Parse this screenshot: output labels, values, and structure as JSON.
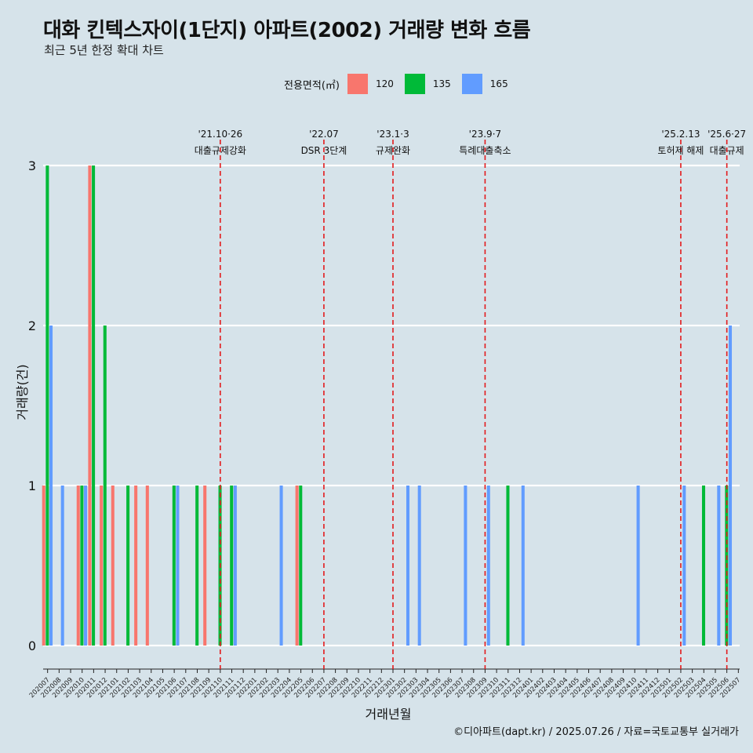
{
  "title": "대화 킨텍스자이(1단지) 아파트(2002) 거래량 변화 흐름",
  "subtitle": "최근 5년 한정 확대 차트",
  "legend": {
    "title": "전용면적(㎡)",
    "items": [
      {
        "label": "120",
        "color": "#f8766d"
      },
      {
        "label": "135",
        "color": "#00ba38"
      },
      {
        "label": "165",
        "color": "#619cff"
      }
    ]
  },
  "caption": "©디아파트(dapt.kr) / 2025.07.26 / 자료=국토교통부 실거래가",
  "chart_data": {
    "type": "bar",
    "xlabel": "거래년월",
    "ylabel": "거래량(건)",
    "ylim": [
      0,
      3
    ],
    "yticks": [
      0,
      1,
      2,
      3
    ],
    "grid": true,
    "legend_position": "top",
    "categories": [
      "202007",
      "202008",
      "202009",
      "202010",
      "202011",
      "202012",
      "202101",
      "202102",
      "202103",
      "202104",
      "202105",
      "202106",
      "202107",
      "202108",
      "202109",
      "202110",
      "202111",
      "202112",
      "202201",
      "202202",
      "202203",
      "202204",
      "202205",
      "202206",
      "202207",
      "202208",
      "202209",
      "202210",
      "202211",
      "202212",
      "202301",
      "202302",
      "202303",
      "202304",
      "202305",
      "202306",
      "202307",
      "202308",
      "202309",
      "202310",
      "202311",
      "202312",
      "202401",
      "202402",
      "202403",
      "202404",
      "202405",
      "202406",
      "202407",
      "202408",
      "202409",
      "202410",
      "202411",
      "202412",
      "202501",
      "202502",
      "202503",
      "202504",
      "202505",
      "202506",
      "202507"
    ],
    "series": [
      {
        "name": "120",
        "color": "#f8766d",
        "values": [
          1,
          0,
          0,
          1,
          3,
          1,
          1,
          0,
          1,
          1,
          0,
          0,
          0,
          0,
          1,
          0,
          0,
          0,
          0,
          0,
          0,
          0,
          1,
          0,
          0,
          0,
          0,
          0,
          0,
          0,
          0,
          0,
          0,
          0,
          0,
          0,
          0,
          0,
          0,
          0,
          0,
          0,
          0,
          0,
          0,
          0,
          0,
          0,
          0,
          0,
          0,
          0,
          0,
          0,
          0,
          0,
          0,
          0,
          0,
          0,
          0
        ]
      },
      {
        "name": "135",
        "color": "#00ba38",
        "values": [
          3,
          0,
          0,
          1,
          3,
          2,
          0,
          1,
          0,
          0,
          0,
          1,
          0,
          1,
          0,
          1,
          1,
          0,
          0,
          0,
          0,
          0,
          1,
          0,
          0,
          0,
          0,
          0,
          0,
          0,
          0,
          0,
          0,
          0,
          0,
          0,
          0,
          0,
          0,
          0,
          1,
          0,
          0,
          0,
          0,
          0,
          0,
          0,
          0,
          0,
          0,
          0,
          0,
          0,
          0,
          0,
          0,
          1,
          0,
          1,
          0
        ]
      },
      {
        "name": "165",
        "color": "#619cff",
        "values": [
          2,
          1,
          0,
          1,
          0,
          0,
          0,
          0,
          0,
          0,
          0,
          1,
          0,
          0,
          0,
          0,
          1,
          0,
          0,
          0,
          1,
          0,
          0,
          0,
          0,
          0,
          0,
          0,
          0,
          0,
          0,
          1,
          1,
          0,
          0,
          0,
          1,
          0,
          1,
          0,
          0,
          1,
          0,
          0,
          0,
          0,
          0,
          0,
          0,
          0,
          0,
          1,
          0,
          0,
          0,
          1,
          0,
          0,
          1,
          2,
          0
        ]
      }
    ],
    "annotations": [
      {
        "month": "202110",
        "date": "'21.10·26",
        "label": "대출규제강화"
      },
      {
        "month": "202207",
        "date": "'22.07",
        "label": "DSR 3단계"
      },
      {
        "month": "202301",
        "date": "'23.1·3",
        "label": "규제완화"
      },
      {
        "month": "202309",
        "date": "'23.9·7",
        "label": "특례대출축소"
      },
      {
        "month": "202502",
        "date": "'25.2.13",
        "label": "토허제 해제"
      },
      {
        "month": "202506",
        "date": "'25.6·27",
        "label": "대출규제"
      }
    ]
  }
}
